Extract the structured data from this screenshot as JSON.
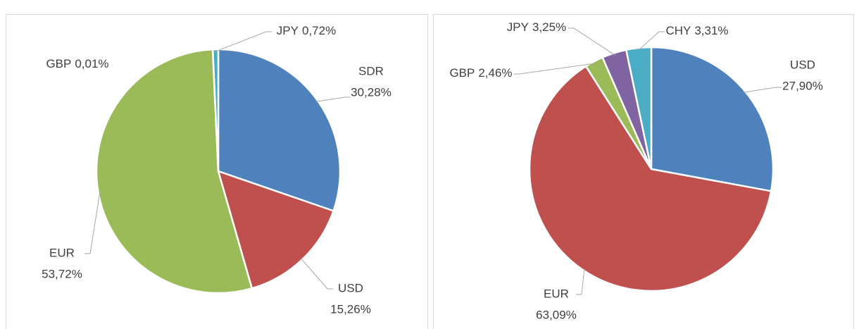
{
  "chart_data": [
    {
      "type": "pie",
      "categories": [
        "SDR",
        "USD",
        "EUR",
        "GBP",
        "JPY"
      ],
      "values": [
        30.28,
        15.26,
        53.72,
        0.01,
        0.72
      ],
      "value_labels": [
        "30,28%",
        "15,26%",
        "53,72%",
        "0,01%",
        "0,72%"
      ],
      "colors": [
        "#4f81bd",
        "#c0504d",
        "#9bbb59",
        "#8064a2",
        "#4bacc6"
      ]
    },
    {
      "type": "pie",
      "categories": [
        "USD",
        "EUR",
        "GBP",
        "JPY",
        "CHY"
      ],
      "values": [
        27.9,
        63.09,
        2.46,
        3.25,
        3.31
      ],
      "value_labels": [
        "27,90%",
        "63,09%",
        "2,46%",
        "3,25%",
        "3,31%"
      ],
      "colors": [
        "#4f81bd",
        "#c0504d",
        "#9bbb59",
        "#8064a2",
        "#4bacc6"
      ]
    }
  ]
}
